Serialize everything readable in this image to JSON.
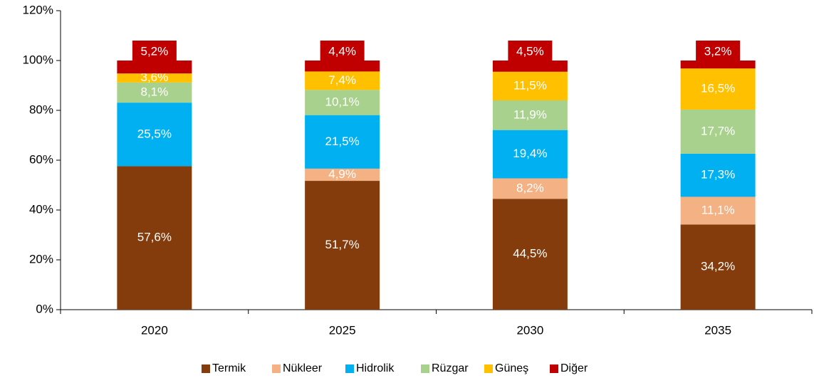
{
  "chart_data": {
    "type": "stacked_bar",
    "categories": [
      "2020",
      "2025",
      "2030",
      "2035"
    ],
    "series": [
      {
        "name": "Termik",
        "color": "#843c0c",
        "values": [
          57.6,
          51.7,
          44.5,
          34.2
        ],
        "value_labels": [
          "57,6%",
          "51,7%",
          "44,5%",
          "34,2%"
        ]
      },
      {
        "name": "Nükleer",
        "color": "#f4b183",
        "values": [
          0,
          4.9,
          8.2,
          11.1
        ],
        "value_labels": [
          null,
          "4,9%",
          "8,2%",
          "11,1%"
        ]
      },
      {
        "name": "Hidrolik",
        "color": "#00b0f0",
        "values": [
          25.5,
          21.5,
          19.4,
          17.3
        ],
        "value_labels": [
          "25,5%",
          "21,5%",
          "19,4%",
          "17,3%"
        ]
      },
      {
        "name": "Rüzgar",
        "color": "#a9d18e",
        "values": [
          8.1,
          10.1,
          11.9,
          17.7
        ],
        "value_labels": [
          "8,1%",
          "10,1%",
          "11,9%",
          "17,7%"
        ]
      },
      {
        "name": "Güneş",
        "color": "#ffc000",
        "values": [
          3.6,
          7.4,
          11.5,
          16.5
        ],
        "value_labels": [
          "3,6%",
          "7,4%",
          "11,5%",
          "16,5%"
        ]
      },
      {
        "name": "Diğer",
        "color": "#c00000",
        "values": [
          5.2,
          4.4,
          4.5,
          3.2
        ],
        "value_labels": [
          "5,2%",
          "4,4%",
          "4,5%",
          "3,2%"
        ]
      }
    ],
    "ylim": [
      0,
      120
    ],
    "yticks": [
      {
        "value": 0,
        "label": "0%"
      },
      {
        "value": 20,
        "label": "20%"
      },
      {
        "value": 40,
        "label": "40%"
      },
      {
        "value": 60,
        "label": "60%"
      },
      {
        "value": 80,
        "label": "80%"
      },
      {
        "value": 100,
        "label": "100%"
      },
      {
        "value": 120,
        "label": "120%"
      }
    ],
    "legend": "bottom"
  }
}
